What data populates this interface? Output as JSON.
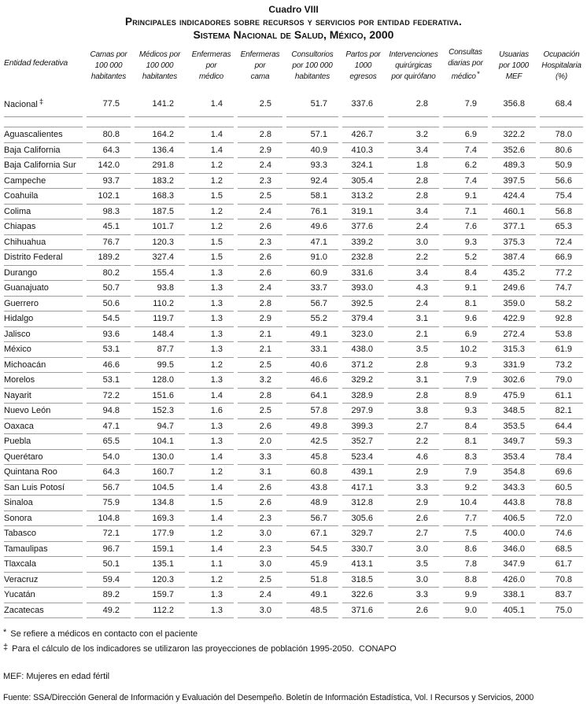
{
  "title": {
    "cuadro": "Cuadro VIII",
    "main": "Principales indicadores sobre recursos y servicios por entidad federativa.",
    "subtitle": "Sistema Nacional de Salud, México, 2000"
  },
  "table": {
    "headers": [
      {
        "id": "entidad",
        "lines": [
          "Entidad federativa"
        ]
      },
      {
        "id": "camas",
        "lines": [
          "Camas por",
          "100 000",
          "habitantes"
        ]
      },
      {
        "id": "medicos",
        "lines": [
          "Médicos por",
          "100 000",
          "habitantes"
        ]
      },
      {
        "id": "enfermeras-por-medico",
        "lines": [
          "Enfermeras",
          "por",
          "médico"
        ]
      },
      {
        "id": "enfermeras-por-cama",
        "lines": [
          "Enfermeras",
          "por",
          "cama"
        ]
      },
      {
        "id": "consultorios",
        "lines": [
          "Consultorios",
          "por 100 000",
          "habitantes"
        ]
      },
      {
        "id": "partos",
        "lines": [
          "Partos por",
          "1000",
          "egresos"
        ]
      },
      {
        "id": "intervenciones",
        "lines": [
          "Intervenciones",
          "quirúrgicas",
          "por quirófano"
        ]
      },
      {
        "id": "consultas",
        "lines": [
          "Consultas",
          "diarias por",
          "médico"
        ],
        "sup": "*"
      },
      {
        "id": "usuarias",
        "lines": [
          "Usuarias",
          "por 1000",
          "MEF"
        ]
      },
      {
        "id": "ocupacion",
        "lines": [
          "Ocupación",
          "Hospitalaria",
          "(%)"
        ]
      }
    ],
    "national_row": {
      "name": "Nacional",
      "sup": "‡",
      "values": [
        "77.5",
        "141.2",
        "1.4",
        "2.5",
        "51.7",
        "337.6",
        "2.8",
        "7.9",
        "356.8",
        "68.4"
      ]
    },
    "rows": [
      {
        "name": "Aguascalientes",
        "values": [
          "80.8",
          "164.2",
          "1.4",
          "2.8",
          "57.1",
          "426.7",
          "3.2",
          "6.9",
          "322.2",
          "78.0"
        ]
      },
      {
        "name": "Baja California",
        "values": [
          "64.3",
          "136.4",
          "1.4",
          "2.9",
          "40.9",
          "410.3",
          "3.4",
          "7.4",
          "352.6",
          "80.6"
        ]
      },
      {
        "name": "Baja California Sur",
        "values": [
          "142.0",
          "291.8",
          "1.2",
          "2.4",
          "93.3",
          "324.1",
          "1.8",
          "6.2",
          "489.3",
          "50.9"
        ]
      },
      {
        "name": "Campeche",
        "values": [
          "93.7",
          "183.2",
          "1.2",
          "2.3",
          "92.4",
          "305.4",
          "2.8",
          "7.4",
          "397.5",
          "56.6"
        ]
      },
      {
        "name": "Coahuila",
        "values": [
          "102.1",
          "168.3",
          "1.5",
          "2.5",
          "58.1",
          "313.2",
          "2.8",
          "9.1",
          "424.4",
          "75.4"
        ]
      },
      {
        "name": "Colima",
        "values": [
          "98.3",
          "187.5",
          "1.2",
          "2.4",
          "76.1",
          "319.1",
          "3.4",
          "7.1",
          "460.1",
          "56.8"
        ]
      },
      {
        "name": "Chiapas",
        "values": [
          "45.1",
          "101.7",
          "1.2",
          "2.6",
          "49.6",
          "377.6",
          "2.4",
          "7.6",
          "377.1",
          "65.3"
        ]
      },
      {
        "name": "Chihuahua",
        "values": [
          "76.7",
          "120.3",
          "1.5",
          "2.3",
          "47.1",
          "339.2",
          "3.0",
          "9.3",
          "375.3",
          "72.4"
        ]
      },
      {
        "name": "Distrito Federal",
        "values": [
          "189.2",
          "327.4",
          "1.5",
          "2.6",
          "91.0",
          "232.8",
          "2.2",
          "5.2",
          "387.4",
          "66.9"
        ]
      },
      {
        "name": "Durango",
        "values": [
          "80.2",
          "155.4",
          "1.3",
          "2.6",
          "60.9",
          "331.6",
          "3.4",
          "8.4",
          "435.2",
          "77.2"
        ]
      },
      {
        "name": "Guanajuato",
        "values": [
          "50.7",
          "93.8",
          "1.3",
          "2.4",
          "33.7",
          "393.0",
          "4.3",
          "9.1",
          "249.6",
          "74.7"
        ]
      },
      {
        "name": "Guerrero",
        "values": [
          "50.6",
          "110.2",
          "1.3",
          "2.8",
          "56.7",
          "392.5",
          "2.4",
          "8.1",
          "359.0",
          "58.2"
        ]
      },
      {
        "name": "Hidalgo",
        "values": [
          "54.5",
          "119.7",
          "1.3",
          "2.9",
          "55.2",
          "379.4",
          "3.1",
          "9.6",
          "422.9",
          "92.8"
        ]
      },
      {
        "name": "Jalisco",
        "values": [
          "93.6",
          "148.4",
          "1.3",
          "2.1",
          "49.1",
          "323.0",
          "2.1",
          "6.9",
          "272.4",
          "53.8"
        ]
      },
      {
        "name": "México",
        "values": [
          "53.1",
          "87.7",
          "1.3",
          "2.1",
          "33.1",
          "438.0",
          "3.5",
          "10.2",
          "315.3",
          "61.9"
        ]
      },
      {
        "name": "Michoacán",
        "values": [
          "46.6",
          "99.5",
          "1.2",
          "2.5",
          "40.6",
          "371.2",
          "2.8",
          "9.3",
          "331.9",
          "73.2"
        ]
      },
      {
        "name": "Morelos",
        "values": [
          "53.1",
          "128.0",
          "1.3",
          "3.2",
          "46.6",
          "329.2",
          "3.1",
          "7.9",
          "302.6",
          "79.0"
        ]
      },
      {
        "name": "Nayarit",
        "values": [
          "72.2",
          "151.6",
          "1.4",
          "2.8",
          "64.1",
          "328.9",
          "2.8",
          "8.9",
          "475.9",
          "61.1"
        ]
      },
      {
        "name": "Nuevo León",
        "values": [
          "94.8",
          "152.3",
          "1.6",
          "2.5",
          "57.8",
          "297.9",
          "3.8",
          "9.3",
          "348.5",
          "82.1"
        ]
      },
      {
        "name": "Oaxaca",
        "values": [
          "47.1",
          "94.7",
          "1.3",
          "2.6",
          "49.8",
          "399.3",
          "2.7",
          "8.4",
          "353.5",
          "64.4"
        ]
      },
      {
        "name": "Puebla",
        "values": [
          "65.5",
          "104.1",
          "1.3",
          "2.0",
          "42.5",
          "352.7",
          "2.2",
          "8.1",
          "349.7",
          "59.3"
        ]
      },
      {
        "name": "Querétaro",
        "values": [
          "54.0",
          "130.0",
          "1.4",
          "3.3",
          "45.8",
          "523.4",
          "4.6",
          "8.3",
          "353.4",
          "78.4"
        ]
      },
      {
        "name": "Quintana Roo",
        "values": [
          "64.3",
          "160.7",
          "1.2",
          "3.1",
          "60.8",
          "439.1",
          "2.9",
          "7.9",
          "354.8",
          "69.6"
        ]
      },
      {
        "name": "San Luis Potosí",
        "values": [
          "56.7",
          "104.5",
          "1.4",
          "2.6",
          "43.8",
          "417.1",
          "3.3",
          "9.2",
          "343.3",
          "60.5"
        ]
      },
      {
        "name": "Sinaloa",
        "values": [
          "75.9",
          "134.8",
          "1.5",
          "2.6",
          "48.9",
          "312.8",
          "2.9",
          "10.4",
          "443.8",
          "78.8"
        ]
      },
      {
        "name": "Sonora",
        "values": [
          "104.8",
          "169.3",
          "1.4",
          "2.3",
          "56.7",
          "305.6",
          "2.6",
          "7.7",
          "406.5",
          "72.0"
        ]
      },
      {
        "name": "Tabasco",
        "values": [
          "72.1",
          "177.9",
          "1.2",
          "3.0",
          "67.1",
          "329.7",
          "2.7",
          "7.5",
          "400.0",
          "74.6"
        ]
      },
      {
        "name": "Tamaulipas",
        "values": [
          "96.7",
          "159.1",
          "1.4",
          "2.3",
          "54.5",
          "330.7",
          "3.0",
          "8.6",
          "346.0",
          "68.5"
        ]
      },
      {
        "name": "Tlaxcala",
        "values": [
          "50.1",
          "135.1",
          "1.1",
          "3.0",
          "45.9",
          "413.1",
          "3.5",
          "7.8",
          "347.9",
          "61.7"
        ]
      },
      {
        "name": "Veracruz",
        "values": [
          "59.4",
          "120.3",
          "1.2",
          "2.5",
          "51.8",
          "318.5",
          "3.0",
          "8.8",
          "426.0",
          "70.8"
        ]
      },
      {
        "name": "Yucatán",
        "values": [
          "89.2",
          "159.7",
          "1.3",
          "2.4",
          "49.1",
          "322.6",
          "3.3",
          "9.9",
          "338.1",
          "83.7"
        ]
      },
      {
        "name": "Zacatecas",
        "values": [
          "49.2",
          "112.2",
          "1.3",
          "3.0",
          "48.5",
          "371.6",
          "2.6",
          "9.0",
          "405.1",
          "75.0"
        ]
      }
    ]
  },
  "footnotes": {
    "fn1": {
      "marker": "*",
      "text": "Se refiere a médicos en contacto con el paciente"
    },
    "fn2": {
      "marker": "‡",
      "text": "Para el cálculo de los indicadores se utilizaron las proyecciones de población 1995-2050.  CONAPO"
    },
    "mef": "MEF: Mujeres en edad fértil",
    "fuente": "Fuente: SSA/Dirección General de Información y Evaluación del Desempeño. Boletín de Información Estadística, Vol. I Recursos y Servicios, 2000"
  },
  "colors": {
    "rule": "#9c9c9c",
    "text": "#141414",
    "background": "#ffffff"
  }
}
